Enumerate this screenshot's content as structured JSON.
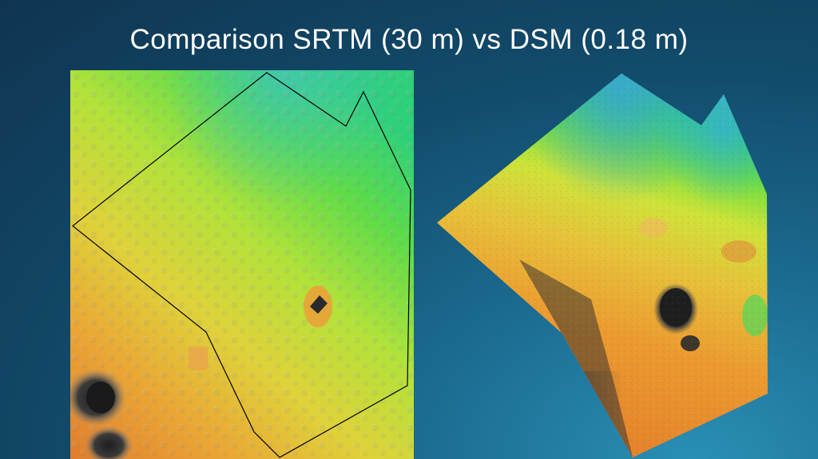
{
  "slide": {
    "title": "Comparison SRTM (30 m) vs DSM (0.18 m)"
  },
  "colors": {
    "background_dark": "#0f3450",
    "background_light": "#2a8fb5",
    "elevation_low": "#e48a2e",
    "elevation_mid": "#d6e63a",
    "elevation_high": "#2bd86a",
    "elevation_top": "#35b6c9",
    "shadow": "#1a1a1a",
    "boundary": "#000000"
  },
  "left_map": {
    "source": "SRTM"
  },
  "right_map": {
    "source": "DSM"
  }
}
